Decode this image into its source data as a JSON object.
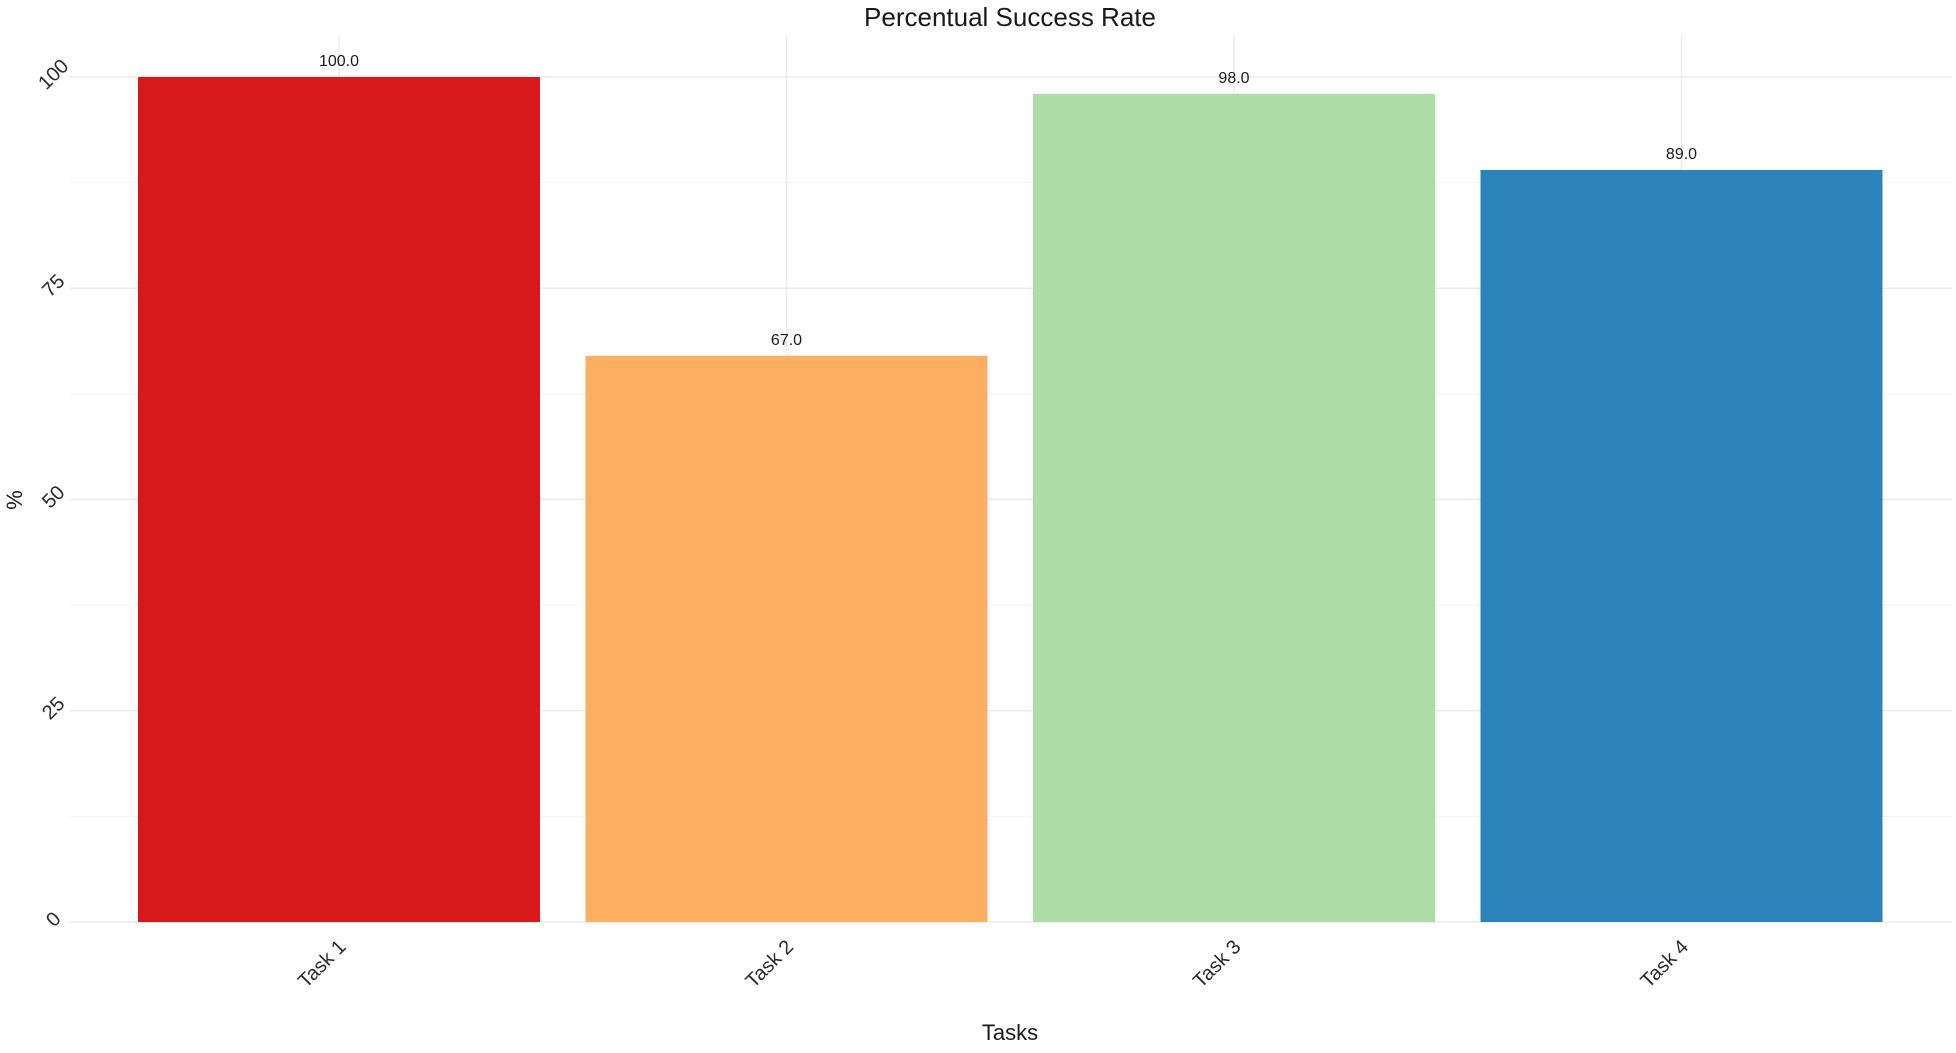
{
  "chart_data": {
    "type": "bar",
    "title": "Percentual Success Rate",
    "xlabel": "Tasks",
    "ylabel": "%",
    "categories": [
      "Task 1",
      "Task 2",
      "Task 3",
      "Task 4"
    ],
    "values": [
      100.0,
      67.0,
      98.0,
      89.0
    ],
    "data_labels": [
      "100.0",
      "67.0",
      "98.0",
      "89.0"
    ],
    "colors": [
      "#d7191c",
      "#fdae61",
      "#abdda4",
      "#2b83ba"
    ],
    "ylim": [
      0,
      100
    ],
    "yticks": [
      0,
      25,
      50,
      75,
      100
    ],
    "ytick_labels": [
      "0",
      "25",
      "50",
      "75",
      "100"
    ],
    "grid": true,
    "legend": "none"
  }
}
